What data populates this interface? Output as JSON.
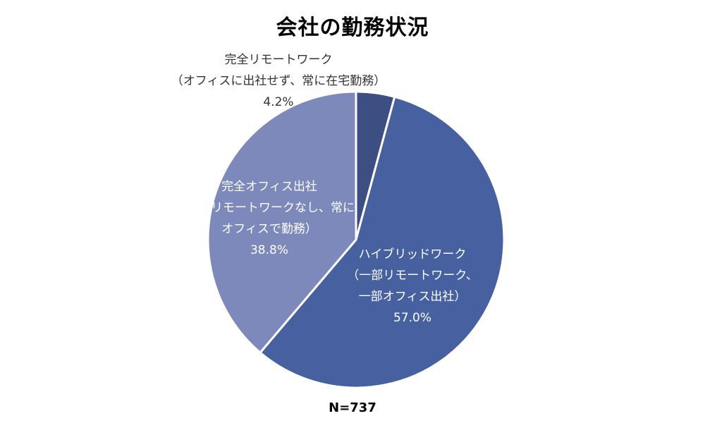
{
  "chart_data": {
    "type": "pie",
    "title": "会社の勤務状況",
    "slices": [
      {
        "label_lines": [
          "完全リモートワーク",
          "（オフィスに出社せず、常に在宅勤務）"
        ],
        "percent_text": "4.2%",
        "value": 4.2,
        "color": "#3D4F82"
      },
      {
        "label_lines": [
          "ハイブリッドワーク",
          "（一部リモートワーク、",
          "一部オフィス出社）"
        ],
        "percent_text": "57.0%",
        "value": 57.0,
        "color": "#4660A0"
      },
      {
        "label_lines": [
          "完全オフィス出社",
          "（リモートワークなし、常に",
          "オフィスで勤務）"
        ],
        "percent_text": "38.8%",
        "value": 38.8,
        "color": "#7C89BA"
      }
    ],
    "start_angle": "12 o'clock",
    "direction": "clockwise",
    "note": "N=737"
  }
}
